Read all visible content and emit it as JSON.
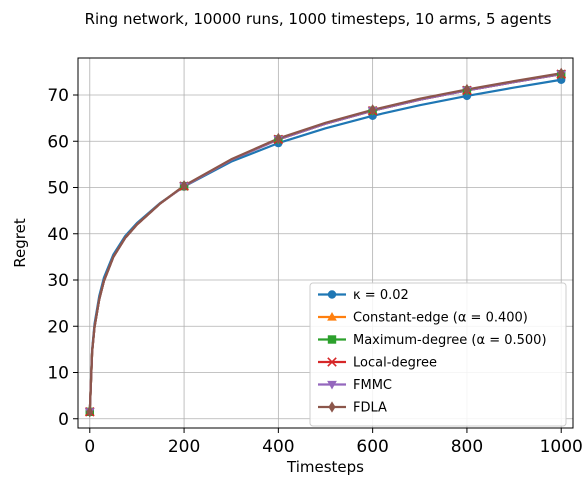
{
  "chart_data": {
    "type": "line",
    "title": "Ring network, 10000 runs, 1000 timesteps, 10 arms, 5 agents",
    "xlabel": "Timesteps",
    "ylabel": "Regret",
    "xlim": [
      -25,
      1025
    ],
    "ylim": [
      -2,
      78
    ],
    "xticks": [
      0,
      200,
      400,
      600,
      800,
      1000
    ],
    "yticks": [
      0,
      10,
      20,
      30,
      40,
      50,
      60,
      70
    ],
    "grid": true,
    "legend_position": "lower-right",
    "series": [
      {
        "name": "κ = 0.02",
        "color": "#1f77b4",
        "marker": "circle",
        "x": [
          0,
          5,
          10,
          20,
          30,
          50,
          75,
          100,
          150,
          200,
          300,
          400,
          500,
          600,
          700,
          800,
          900,
          1000
        ],
        "y": [
          1.5,
          15,
          20.5,
          26.5,
          30.5,
          35.5,
          39.5,
          42.3,
          46.7,
          50.2,
          55.6,
          59.6,
          62.8,
          65.5,
          67.8,
          69.8,
          71.6,
          73.3
        ]
      },
      {
        "name": "Constant-edge (α = 0.400)",
        "color": "#ff7f0e",
        "marker": "triangle-up",
        "x": [
          0,
          5,
          10,
          20,
          30,
          50,
          75,
          100,
          150,
          200,
          300,
          400,
          500,
          600,
          700,
          800,
          900,
          1000
        ],
        "y": [
          1.5,
          14.5,
          19.8,
          25.8,
          29.8,
          35,
          39.1,
          42,
          46.6,
          50.3,
          56,
          60.4,
          63.8,
          66.6,
          69,
          71,
          72.8,
          74.5
        ]
      },
      {
        "name": "Maximum-degree (α = 0.500)",
        "color": "#2ca02c",
        "marker": "square",
        "x": [
          0,
          5,
          10,
          20,
          30,
          50,
          75,
          100,
          150,
          200,
          300,
          400,
          500,
          600,
          700,
          800,
          900,
          1000
        ],
        "y": [
          1.5,
          14.5,
          19.8,
          25.8,
          29.8,
          35,
          39.1,
          42,
          46.6,
          50.3,
          56,
          60.4,
          63.8,
          66.6,
          69,
          71,
          72.8,
          74.5
        ]
      },
      {
        "name": "Local-degree",
        "color": "#d62728",
        "marker": "x",
        "x": [
          0,
          5,
          10,
          20,
          30,
          50,
          75,
          100,
          150,
          200,
          300,
          400,
          500,
          600,
          700,
          800,
          900,
          1000
        ],
        "y": [
          1.5,
          14.5,
          19.8,
          25.8,
          29.8,
          35,
          39.1,
          42,
          46.6,
          50.3,
          56,
          60.4,
          63.8,
          66.6,
          69,
          71,
          72.8,
          74.5
        ]
      },
      {
        "name": "FMMC",
        "color": "#9467bd",
        "marker": "triangle-down",
        "x": [
          0,
          5,
          10,
          20,
          30,
          50,
          75,
          100,
          150,
          200,
          300,
          400,
          500,
          600,
          700,
          800,
          900,
          1000
        ],
        "y": [
          1.5,
          14.5,
          19.8,
          25.8,
          29.8,
          35,
          39.1,
          42,
          46.6,
          50.3,
          56,
          60.4,
          63.8,
          66.6,
          69,
          71,
          72.8,
          74.5
        ]
      },
      {
        "name": "FDLA",
        "color": "#8c564b",
        "marker": "diamond",
        "x": [
          0,
          5,
          10,
          20,
          30,
          50,
          75,
          100,
          150,
          200,
          300,
          400,
          500,
          600,
          700,
          800,
          900,
          1000
        ],
        "y": [
          1.5,
          14.5,
          19.8,
          25.8,
          29.8,
          35,
          39.1,
          42,
          46.6,
          50.4,
          56.1,
          60.6,
          64,
          66.8,
          69.2,
          71.2,
          73,
          74.7
        ]
      }
    ]
  }
}
